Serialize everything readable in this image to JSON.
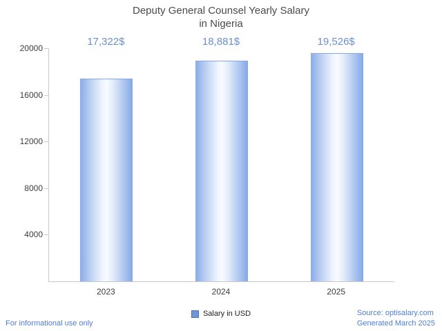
{
  "title": "Deputy General Counsel Yearly Salary\nin Nigeria",
  "legend": {
    "label": "Salary in USD",
    "swatch_color": "#6e96d8"
  },
  "footer": {
    "left": "For informational use only",
    "source": "Source: optisalary.com",
    "generated": "Generated March 2025"
  },
  "colors": {
    "value_label": "#6a8ed2",
    "footer_text": "#4d7dd6",
    "axis": "#c9c9c9",
    "bar_edge": "#84a7e6",
    "bar_center": "#f8fbff",
    "text": "#3c3c3c"
  },
  "chart_data": {
    "type": "bar",
    "title": "Deputy General Counsel Yearly Salary in Nigeria",
    "categories": [
      "2023",
      "2024",
      "2025"
    ],
    "values": [
      17322,
      18881,
      19526
    ],
    "value_labels": [
      "17,322$",
      "18,881$",
      "19,526$"
    ],
    "series": [
      {
        "name": "Salary in USD",
        "values": [
          17322,
          18881,
          19526
        ]
      }
    ],
    "xlabel": "",
    "ylabel": "",
    "ylim": [
      0,
      20000
    ],
    "yticks": [
      4000,
      8000,
      12000,
      16000,
      20000
    ],
    "grid": false,
    "legend_position": "bottom"
  }
}
